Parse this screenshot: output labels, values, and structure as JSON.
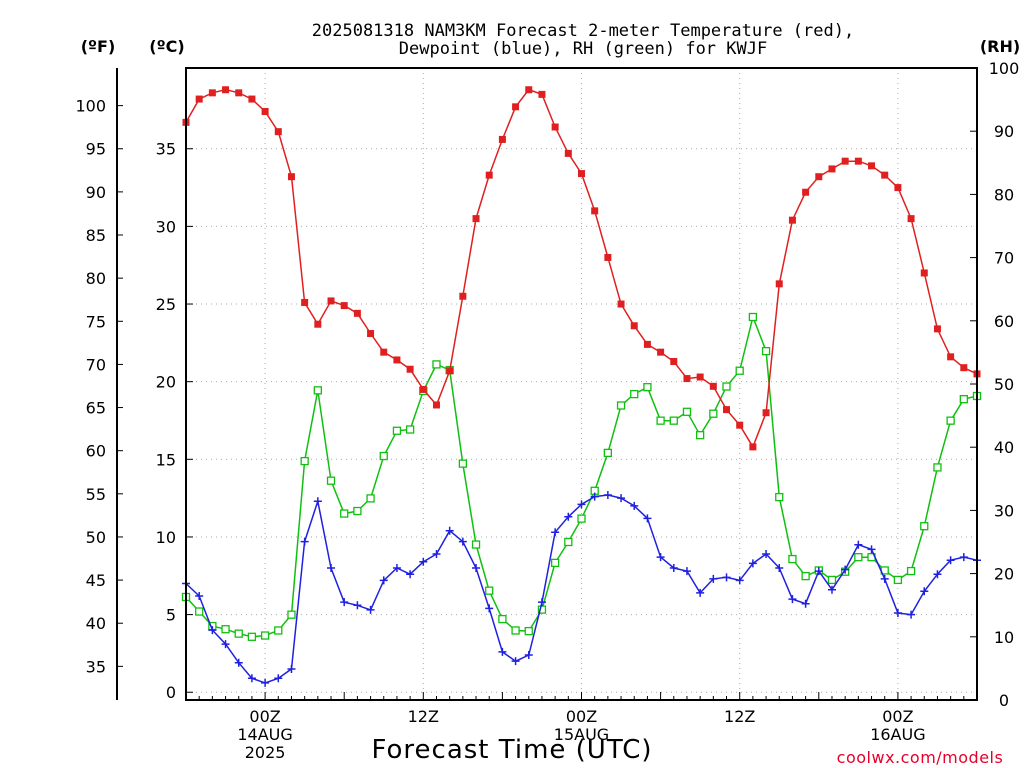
{
  "chart_data": {
    "type": "line",
    "title_line1": "2025081318 NAM3KM Forecast 2-meter Temperature (red),",
    "title_line2": "Dewpoint (blue), RH (green) for KWJF",
    "unit_f": "(ºF)",
    "unit_c": "(ºC)",
    "unit_rh": "(RH)",
    "xlabel": "Forecast Time (UTC)",
    "credit": "coolwx.com/models",
    "x_ticks": [
      {
        "h": 6,
        "lines": [
          "00Z",
          "14AUG",
          "2025"
        ]
      },
      {
        "h": 18,
        "lines": [
          "12Z"
        ]
      },
      {
        "h": 30,
        "lines": [
          "00Z",
          "15AUG"
        ]
      },
      {
        "h": 42,
        "lines": [
          "12Z"
        ]
      },
      {
        "h": 54,
        "lines": [
          "00Z",
          "16AUG"
        ]
      }
    ],
    "xlim": [
      0,
      60
    ],
    "c_lim": [
      -0.5,
      40.2
    ],
    "c_ticks": [
      0,
      5,
      10,
      15,
      20,
      25,
      30,
      35
    ],
    "f_ticks": [
      35,
      40,
      45,
      50,
      55,
      60,
      65,
      70,
      75,
      80,
      85,
      90,
      95,
      100
    ],
    "rh_lim": [
      0,
      100
    ],
    "rh_ticks": [
      0,
      10,
      20,
      30,
      40,
      50,
      60,
      70,
      80,
      90,
      100
    ],
    "colors": {
      "temperature": "#e02020",
      "dewpoint": "#2020e0",
      "rh": "#10c010"
    },
    "series": [
      {
        "key": "temperature",
        "axis": "c",
        "marker": "filled-square",
        "x": [
          0,
          1,
          2,
          3,
          4,
          5,
          6,
          7,
          8,
          9,
          10,
          11,
          12,
          13,
          14,
          15,
          16,
          17,
          18,
          19,
          20,
          21,
          22,
          23,
          24,
          25,
          26,
          27,
          28,
          29,
          30,
          31,
          32,
          33,
          34,
          35,
          36,
          37,
          38,
          39,
          40,
          41,
          42,
          43,
          44,
          45,
          46,
          47,
          48,
          49,
          50,
          51,
          52,
          53,
          54,
          55,
          56,
          57,
          58,
          59,
          60
        ],
        "values": [
          36.7,
          38.2,
          38.6,
          38.8,
          38.6,
          38.2,
          37.4,
          36.1,
          33.2,
          25.1,
          23.7,
          25.2,
          24.9,
          24.4,
          23.1,
          21.9,
          21.4,
          20.8,
          19.5,
          18.5,
          20.7,
          25.5,
          30.5,
          33.3,
          35.6,
          37.7,
          38.8,
          38.5,
          36.4,
          34.7,
          33.4,
          31.0,
          28.0,
          25.0,
          23.6,
          22.4,
          21.9,
          21.3,
          20.2,
          20.3,
          19.7,
          18.2,
          17.2,
          15.8,
          18.0,
          26.3,
          30.4,
          32.2,
          33.2,
          33.7,
          34.2,
          34.2,
          33.9,
          33.3,
          32.5,
          30.5,
          27.0,
          23.4,
          21.6,
          20.9,
          20.5
        ]
      },
      {
        "key": "dewpoint",
        "axis": "c",
        "marker": "plus",
        "x": [
          0,
          1,
          2,
          3,
          4,
          5,
          6,
          7,
          8,
          9,
          10,
          11,
          12,
          13,
          14,
          15,
          16,
          17,
          18,
          19,
          20,
          21,
          22,
          23,
          24,
          25,
          26,
          27,
          28,
          29,
          30,
          31,
          32,
          33,
          34,
          35,
          36,
          37,
          38,
          39,
          40,
          41,
          42,
          43,
          44,
          45,
          46,
          47,
          48,
          49,
          50,
          51,
          52,
          53,
          54,
          55,
          56,
          57,
          58,
          59,
          60
        ],
        "values": [
          7.0,
          6.2,
          4.0,
          3.1,
          1.9,
          0.9,
          0.6,
          0.9,
          1.5,
          9.7,
          12.3,
          8.0,
          5.8,
          5.6,
          5.3,
          7.2,
          8.0,
          7.6,
          8.4,
          8.9,
          10.4,
          9.7,
          8.0,
          5.4,
          2.6,
          2.0,
          2.4,
          5.8,
          10.3,
          11.3,
          12.1,
          12.6,
          12.7,
          12.5,
          12.0,
          11.2,
          8.7,
          8.0,
          7.8,
          6.4,
          7.3,
          7.4,
          7.2,
          8.3,
          8.9,
          8.0,
          6.0,
          5.7,
          7.8,
          6.6,
          7.9,
          9.5,
          9.2,
          7.3,
          5.1,
          5.0,
          6.5,
          7.6,
          8.5,
          8.7,
          8.5
        ]
      },
      {
        "key": "rh",
        "axis": "rh",
        "marker": "open-square",
        "x": [
          0,
          1,
          2,
          3,
          4,
          5,
          6,
          7,
          8,
          9,
          10,
          11,
          12,
          13,
          14,
          15,
          16,
          17,
          18,
          19,
          20,
          21,
          22,
          23,
          24,
          25,
          26,
          27,
          28,
          29,
          30,
          31,
          32,
          33,
          34,
          35,
          36,
          37,
          38,
          39,
          40,
          41,
          42,
          43,
          44,
          45,
          46,
          47,
          48,
          49,
          50,
          51,
          52,
          53,
          54,
          55,
          56,
          57,
          58,
          59,
          60
        ],
        "values": [
          16.3,
          14.0,
          11.7,
          11.2,
          10.5,
          10.0,
          10.2,
          11.0,
          13.5,
          37.8,
          49.0,
          34.7,
          29.5,
          29.9,
          31.9,
          38.6,
          42.6,
          42.8,
          48.9,
          53.1,
          52.2,
          37.4,
          24.6,
          17.3,
          12.8,
          11.0,
          10.9,
          14.3,
          21.7,
          25.0,
          28.7,
          33.1,
          39.1,
          46.6,
          48.4,
          49.5,
          44.2,
          44.2,
          45.6,
          41.9,
          45.3,
          49.6,
          52.1,
          60.6,
          55.2,
          32.1,
          22.3,
          19.6,
          20.5,
          19.0,
          20.3,
          22.6,
          22.6,
          20.5,
          19.0,
          20.4,
          27.5,
          36.8,
          44.2,
          47.6,
          48.1
        ]
      }
    ]
  }
}
